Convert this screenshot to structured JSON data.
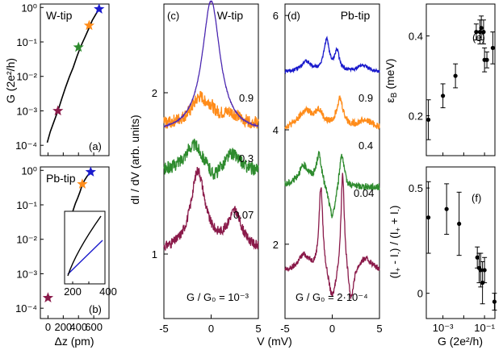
{
  "colors": {
    "maroon": "#8a1a4a",
    "orange": "#ff8c1a",
    "green": "#2e8b2e",
    "blue": "#1a1acc",
    "purple": "#7a3c9e",
    "axis": "#000000"
  },
  "chart_data": [
    {
      "panel_label": "(a)",
      "title": "W-tip",
      "type": "scatter",
      "xlabel": "",
      "ylabel": "G (2e²/h)",
      "xlim": [
        -100,
        800
      ],
      "ylim_log10": [
        -4.3,
        0.1
      ],
      "log_y": true,
      "yticks": [
        "10⁰",
        "10⁻¹",
        "10⁻²",
        "10⁻³",
        "10⁻⁴"
      ],
      "markers": "stars",
      "points": [
        {
          "x": 130,
          "y": 0.001,
          "color": "maroon"
        },
        {
          "x": 400,
          "y": 0.07,
          "color": "green"
        },
        {
          "x": 540,
          "y": 0.3,
          "color": "orange"
        },
        {
          "x": 670,
          "y": 0.9,
          "color": "blue"
        }
      ],
      "curve_x": [
        -10,
        30,
        80,
        130,
        180,
        230,
        280,
        330,
        380,
        430,
        480,
        530,
        580,
        630,
        670
      ],
      "curve_y": [
        0.00012,
        0.00025,
        0.0005,
        0.001,
        0.0022,
        0.0048,
        0.0097,
        0.018,
        0.038,
        0.075,
        0.13,
        0.23,
        0.42,
        0.65,
        0.9
      ]
    },
    {
      "panel_label": "(b)",
      "title": "Pb-tip",
      "type": "scatter",
      "xlabel": "Δz (pm)",
      "ylabel": "",
      "xlim": [
        -100,
        800
      ],
      "ylim_log10": [
        -4.3,
        0.1
      ],
      "log_y": true,
      "xticks": [
        "0",
        "200",
        "400",
        "600"
      ],
      "yticks": [
        "10⁰",
        "10⁻¹",
        "10⁻²",
        "10⁻³",
        "10⁻⁴"
      ],
      "markers": "stars",
      "points": [
        {
          "x": 0,
          "y": 0.0002,
          "color": "maroon"
        },
        {
          "x": 300,
          "y": 0.04,
          "color": "green"
        },
        {
          "x": 450,
          "y": 0.4,
          "color": "orange"
        },
        {
          "x": 560,
          "y": 0.9,
          "color": "blue"
        }
      ],
      "curve_x": [
        300,
        330,
        360,
        390,
        420,
        450,
        480,
        510,
        540,
        560
      ],
      "curve_y": [
        0.04,
        0.07,
        0.11,
        0.16,
        0.24,
        0.38,
        0.52,
        0.66,
        0.8,
        0.9
      ],
      "inset": {
        "xticks": [
          "200",
          "400"
        ]
      }
    },
    {
      "panel_label": "(c)",
      "title": "W-tip",
      "type": "line",
      "xlabel": "V (mV)",
      "ylabel": "dI / dV (arb. units)",
      "xlim": [
        -5,
        5
      ],
      "ylim": [
        0.6,
        2.55
      ],
      "xticks": [
        "-5",
        "0",
        "5"
      ],
      "yticks": [
        "1",
        "2"
      ],
      "series": [
        {
          "name": "G / G₀ = 10⁻³",
          "color": "maroon",
          "offset": 1,
          "amp": 0.75,
          "noise": 0.03
        },
        {
          "name": "0.07",
          "color": "green",
          "offset": 1.5,
          "amp": 0.2,
          "noise": 0.04
        },
        {
          "name": "0.3",
          "color": "orange",
          "offset": 1.8,
          "amp": 0.15,
          "noise": 0.04
        },
        {
          "name": "0.9",
          "color": "purple",
          "offset": 1.75,
          "amp": 0.7,
          "noise": 0.005
        }
      ],
      "curve_labels": [
        "0.9",
        "0.3",
        "0.07",
        "G / G₀ = 10⁻³"
      ]
    },
    {
      "panel_label": "(d)",
      "title": "Pb-tip",
      "type": "line",
      "xlabel": "",
      "ylabel": "",
      "xlim": [
        -5,
        5
      ],
      "ylim": [
        0.7,
        6.2
      ],
      "xticks": [
        "-5",
        "0",
        "5"
      ],
      "yticks": [
        "2",
        "4",
        "6"
      ],
      "series": [
        {
          "name": "G / G₀ = 2·10⁻⁴",
          "color": "maroon",
          "offset": 1.5,
          "amp": 1.5,
          "noise": 0.05
        },
        {
          "name": "0.04",
          "color": "green",
          "offset": 3,
          "amp": 1,
          "noise": 0.06
        },
        {
          "name": "0.4",
          "color": "orange",
          "offset": 4,
          "amp": 0.6,
          "noise": 0.06
        },
        {
          "name": "0.9",
          "color": "blue",
          "offset": 5,
          "amp": 0.9,
          "noise": 0.03
        }
      ],
      "curve_labels": [
        "0.9",
        "0.4",
        "0.04",
        "G / G₀ = 2·10⁻⁴"
      ]
    },
    {
      "panel_label": "(e)",
      "type": "scatter",
      "xlabel": "",
      "ylabel": "ε_B (meV)",
      "ylim": [
        0.1,
        0.48
      ],
      "xlim_log10": [
        -3.8,
        -0.5
      ],
      "log_x": true,
      "yticks": [
        "0.2",
        "0.4"
      ],
      "points": [
        {
          "x": 0.0002,
          "y": 0.19,
          "err": 0.05
        },
        {
          "x": 0.001,
          "y": 0.25,
          "err": 0.03
        },
        {
          "x": 0.004,
          "y": 0.3,
          "err": 0.03
        },
        {
          "x": 0.04,
          "y": 0.41,
          "err": 0.02
        },
        {
          "x": 0.06,
          "y": 0.41,
          "err": 0.03
        },
        {
          "x": 0.07,
          "y": 0.42,
          "err": 0.03
        },
        {
          "x": 0.09,
          "y": 0.41,
          "err": 0.03
        },
        {
          "x": 0.1,
          "y": 0.34,
          "err": 0.03
        },
        {
          "x": 0.13,
          "y": 0.34,
          "err": 0.02
        },
        {
          "x": 0.25,
          "y": 0.37,
          "err": 0.04
        }
      ]
    },
    {
      "panel_label": "(f)",
      "type": "scatter",
      "xlabel": "G (2e²/h)",
      "ylabel": "(I₊ - I₋) / (I₊ + I₋)",
      "ylim": [
        -0.12,
        0.6
      ],
      "xlim_log10": [
        -3.8,
        -0.5
      ],
      "log_x": true,
      "xticks": [
        "10⁻³",
        "10⁻¹"
      ],
      "yticks": [
        "0",
        "0.5"
      ],
      "points": [
        {
          "x": 0.0002,
          "y": 0.36,
          "err": 0.17
        },
        {
          "x": 0.0015,
          "y": 0.4,
          "err": 0.12
        },
        {
          "x": 0.006,
          "y": 0.33,
          "err": 0.15
        },
        {
          "x": 0.045,
          "y": 0.17,
          "err": 0.05
        },
        {
          "x": 0.055,
          "y": 0.12,
          "err": 0.07
        },
        {
          "x": 0.065,
          "y": 0.11,
          "err": 0.08
        },
        {
          "x": 0.08,
          "y": 0.05,
          "err": 0.1
        },
        {
          "x": 0.1,
          "y": 0.11,
          "err": 0.06
        },
        {
          "x": 0.3,
          "y": -0.04,
          "err": 0.04
        }
      ]
    }
  ]
}
